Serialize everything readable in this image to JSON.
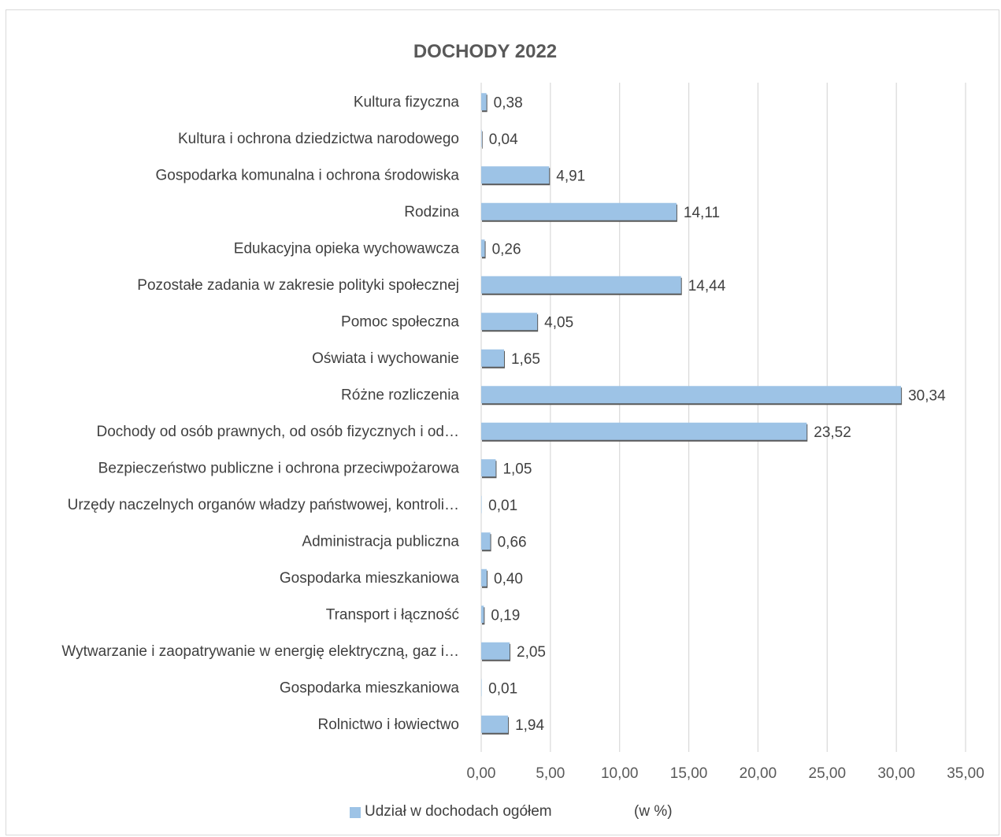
{
  "chart_data": {
    "type": "bar",
    "orientation": "horizontal",
    "title": "DOCHODY 2022",
    "categories": [
      "Kultura fizyczna",
      "Kultura i ochrona dziedzictwa narodowego",
      "Gospodarka komunalna i ochrona środowiska",
      "Rodzina",
      "Edukacyjna opieka wychowawcza",
      "Pozostałe zadania w zakresie polityki społecznej",
      "Pomoc społeczna",
      "Oświata i wychowanie",
      "Różne rozliczenia",
      "Dochody od osób prawnych, od osób fizycznych i od…",
      "Bezpieczeństwo publiczne i ochrona przeciwpożarowa",
      "Urzędy naczelnych organów władzy państwowej, kontroli…",
      "Administracja publiczna",
      "Gospodarka mieszkaniowa",
      "Transport i łączność",
      "Wytwarzanie i zaopatrywanie w energię elektryczną, gaz i…",
      "Gospodarka mieszkaniowa",
      "Rolnictwo i łowiectwo"
    ],
    "series": [
      {
        "name": "Udział w dochodach ogółem",
        "values": [
          0.38,
          0.04,
          4.91,
          14.11,
          0.26,
          14.44,
          4.05,
          1.65,
          30.34,
          23.52,
          1.05,
          0.01,
          0.66,
          0.4,
          0.19,
          2.05,
          0.01,
          1.94
        ],
        "labels": [
          "0,38",
          "0,04",
          "4,91",
          "14,11",
          "0,26",
          "14,44",
          "4,05",
          "1,65",
          "30,34",
          "23,52",
          "1,05",
          "0,01",
          "0,66",
          "0,40",
          "0,19",
          "2,05",
          "0,01",
          "1,94"
        ]
      }
    ],
    "xlim": [
      0,
      35
    ],
    "xticks": [
      0,
      5,
      10,
      15,
      20,
      25,
      30,
      35
    ],
    "xtick_labels": [
      "0,00",
      "5,00",
      "10,00",
      "15,00",
      "20,00",
      "25,00",
      "30,00",
      "35,00"
    ],
    "grid": true,
    "legend": {
      "position": "bottom",
      "label": "Udział w dochodach ogółem",
      "suffix": "(w %)"
    },
    "colors": {
      "bar": "#9dc3e6",
      "bar_shadow": "#595959",
      "grid": "#d9d9d9"
    }
  }
}
